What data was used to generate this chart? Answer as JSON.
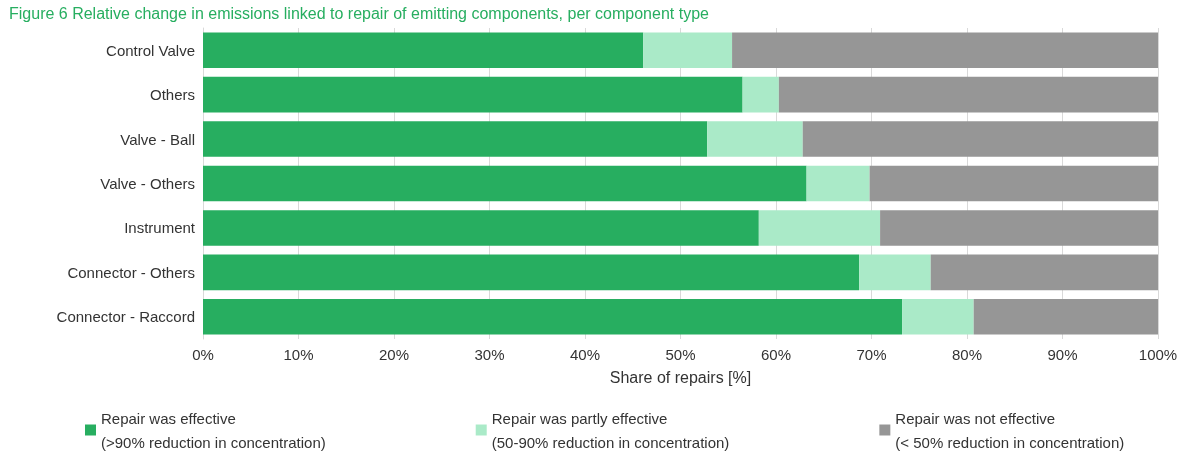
{
  "chart_data": {
    "type": "bar",
    "orientation": "horizontal",
    "stacked": true,
    "title": "Figure 6 Relative change in emissions linked to repair of emitting components, per component type",
    "xlabel": "Share of repairs [%]",
    "categories": [
      "Control Valve",
      "Others",
      "Valve - Ball",
      "Valve - Others",
      "Instrument",
      "Connector - Others",
      "Connector - Raccord"
    ],
    "series": [
      {
        "name": "Repair was effective\n(>90% reduction in concentration)",
        "color": "#27ae60",
        "values": [
          46.1,
          56.5,
          52.8,
          63.2,
          58.2,
          68.7,
          73.2
        ]
      },
      {
        "name": "Repair was partly effective\n(50-90% reduction in concentration)",
        "color": "#aaeac8",
        "values": [
          9.3,
          3.8,
          10.0,
          6.6,
          12.7,
          7.5,
          7.5
        ]
      },
      {
        "name": "Repair was not effective\n(< 50% reduction in concentration)",
        "color": "#969696",
        "values": [
          44.6,
          39.7,
          37.2,
          30.2,
          29.1,
          23.8,
          19.3
        ]
      }
    ],
    "xlim": [
      0,
      100
    ],
    "xticks": [
      {
        "value": 0,
        "label": "0%"
      },
      {
        "value": 10,
        "label": "10%"
      },
      {
        "value": 20,
        "label": "20%"
      },
      {
        "value": 30,
        "label": "30%"
      },
      {
        "value": 40,
        "label": "40%"
      },
      {
        "value": 50,
        "label": "50%"
      },
      {
        "value": 60,
        "label": "60%"
      },
      {
        "value": 70,
        "label": "70%"
      },
      {
        "value": 80,
        "label": "80%"
      },
      {
        "value": 90,
        "label": "90%"
      },
      {
        "value": 100,
        "label": "100%"
      }
    ],
    "grid": "x",
    "legend": "bottom"
  }
}
